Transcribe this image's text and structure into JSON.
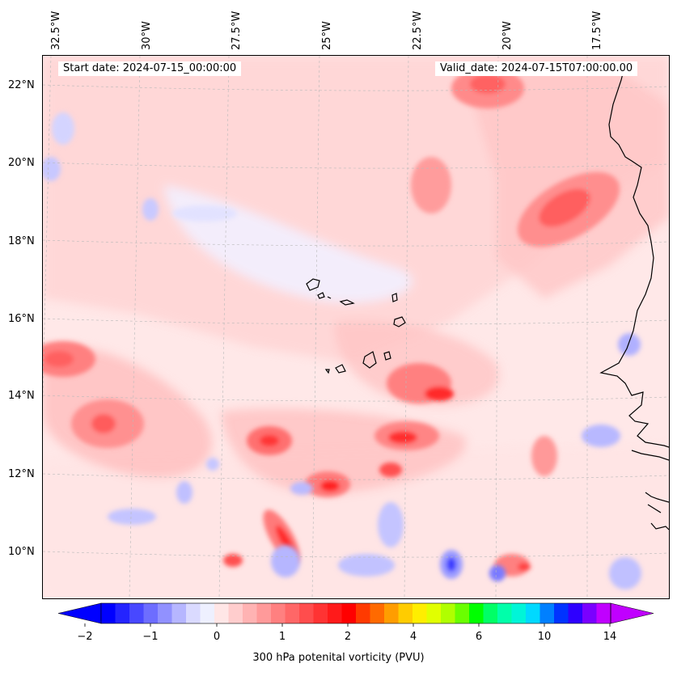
{
  "header": {
    "start_date": "Start date: 2024-07-15_00:00:00",
    "valid_date": "Valid_date: 2024-07-15T07:00:00.00"
  },
  "map": {
    "lon_labels": [
      "32.5°W",
      "30°W",
      "27.5°W",
      "25°W",
      "22.5°W",
      "20°W",
      "17.5°W"
    ],
    "lat_labels": [
      "22°N",
      "20°N",
      "18°N",
      "16°N",
      "14°N",
      "12°N",
      "10°N"
    ],
    "gridlines": "dashed"
  },
  "colorbar": {
    "label": "300 hPa potenital vorticity (PVU)",
    "tick_labels": [
      "−2",
      "−1",
      "0",
      "1",
      "2",
      "4",
      "6",
      "10",
      "14"
    ],
    "extend": "both",
    "colors": [
      "#0000ff",
      "#2424ff",
      "#4848ff",
      "#6d6dff",
      "#9191ff",
      "#b6b6ff",
      "#dadaff",
      "#eef0ff",
      "#ffe6e6",
      "#ffcdcd",
      "#ffb3b3",
      "#ff9a9a",
      "#ff8080",
      "#ff6767",
      "#ff4d4d",
      "#ff3333",
      "#ff1a1a",
      "#ff0000",
      "#ff3a00",
      "#ff6a00",
      "#ff9d00",
      "#ffcc00",
      "#ffee00",
      "#e1ff00",
      "#b0ff00",
      "#6aff00",
      "#00ff00",
      "#00ff66",
      "#00ffaa",
      "#00f5d8",
      "#00d9ff",
      "#0080ff",
      "#0033ff",
      "#2e00ff",
      "#7a00ff",
      "#c000ff"
    ]
  }
}
